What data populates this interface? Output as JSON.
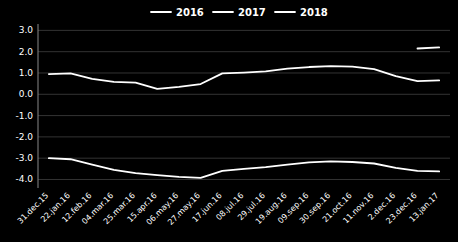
{
  "chart_data": {
    "type": "line",
    "categories": [
      "31.dec.15",
      "22.jan.16",
      "12.feb.16",
      "04.mar.16",
      "25.mar.16",
      "15.apr.16",
      "06.may.16",
      "27.may.16",
      "17.jun.16",
      "08.jul.16",
      "29.jul.16",
      "19.aug.16",
      "09.sep.16",
      "30.sep.16",
      "21.oct.16",
      "11.nov.16",
      "2.dec.16",
      "23.dec.16",
      "13.jan.17"
    ],
    "series": [
      {
        "name": "2016",
        "color": "#ffffff",
        "values": [
          0.95,
          0.98,
          0.72,
          0.58,
          0.55,
          0.25,
          0.35,
          0.48,
          0.98,
          1.02,
          1.08,
          1.2,
          1.28,
          1.32,
          1.3,
          1.18,
          0.85,
          0.62,
          0.65
        ]
      },
      {
        "name": "2017",
        "color": "#ffffff",
        "values": [
          -3.0,
          -3.05,
          -3.3,
          -3.55,
          -3.7,
          -3.8,
          -3.88,
          -3.92,
          -3.6,
          -3.5,
          -3.42,
          -3.3,
          -3.2,
          -3.15,
          -3.18,
          -3.25,
          -3.45,
          -3.6,
          -3.62
        ]
      },
      {
        "name": "2018",
        "color": "#ffffff",
        "values": [
          null,
          null,
          null,
          null,
          null,
          null,
          null,
          null,
          null,
          null,
          null,
          null,
          null,
          null,
          null,
          null,
          null,
          2.15,
          2.2
        ]
      }
    ],
    "ylim": [
      -4.4,
      3.3
    ],
    "yticks": [
      {
        "value": 3.0,
        "label": "3.0"
      },
      {
        "value": 2.0,
        "label": "2.0"
      },
      {
        "value": 1.0,
        "label": "1.0"
      },
      {
        "value": 0.0,
        "label": "0.0"
      },
      {
        "value": -1.0,
        "label": "-1.0"
      },
      {
        "value": -2.0,
        "label": "-2.0"
      },
      {
        "value": -3.0,
        "label": "-3.0"
      },
      {
        "value": -4.0,
        "label": "-4.0"
      }
    ],
    "grid": true,
    "legend": "top"
  }
}
